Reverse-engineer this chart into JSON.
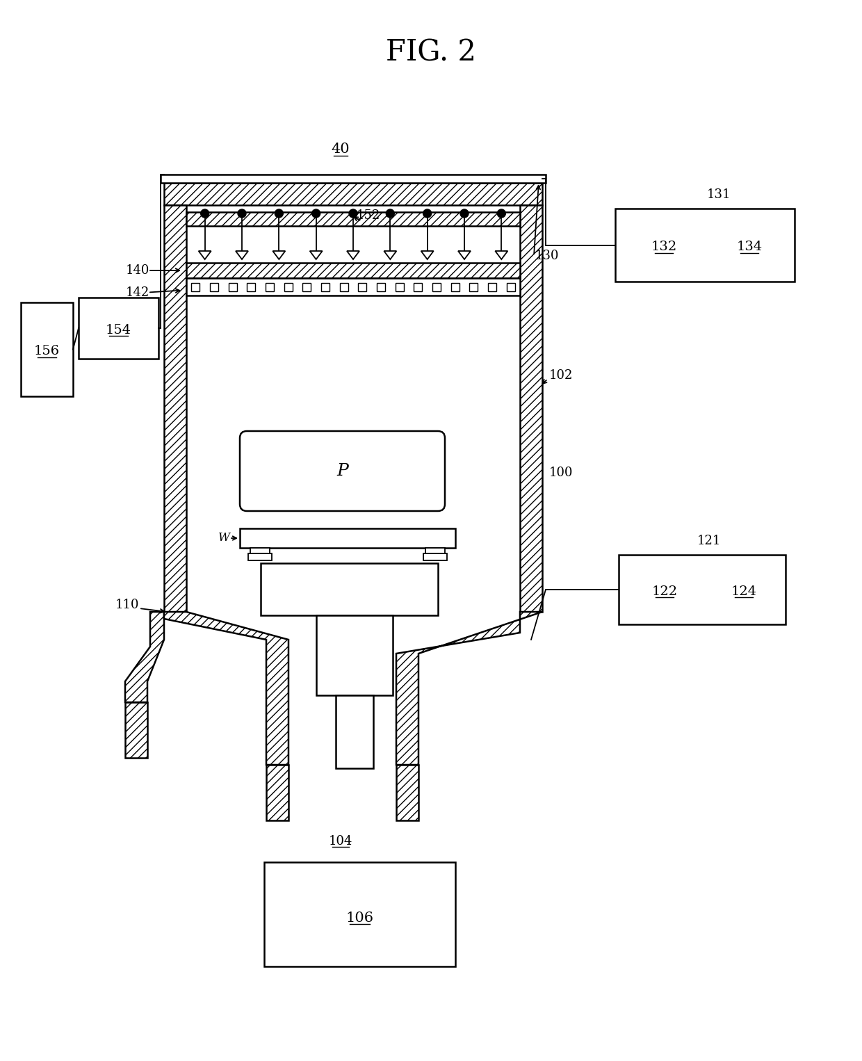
{
  "title": "FIG. 2",
  "bg_color": "#ffffff",
  "lc": "#000000",
  "labels": {
    "40": "40",
    "100": "100",
    "102": "102",
    "104": "104",
    "106": "106",
    "110": "110",
    "121": "121",
    "122": "122",
    "124": "124",
    "130": "130",
    "131": "131",
    "132": "132",
    "134": "134",
    "140": "140",
    "142": "142",
    "152": "152",
    "154": "154",
    "156": "156",
    "P": "P",
    "W": "W"
  }
}
